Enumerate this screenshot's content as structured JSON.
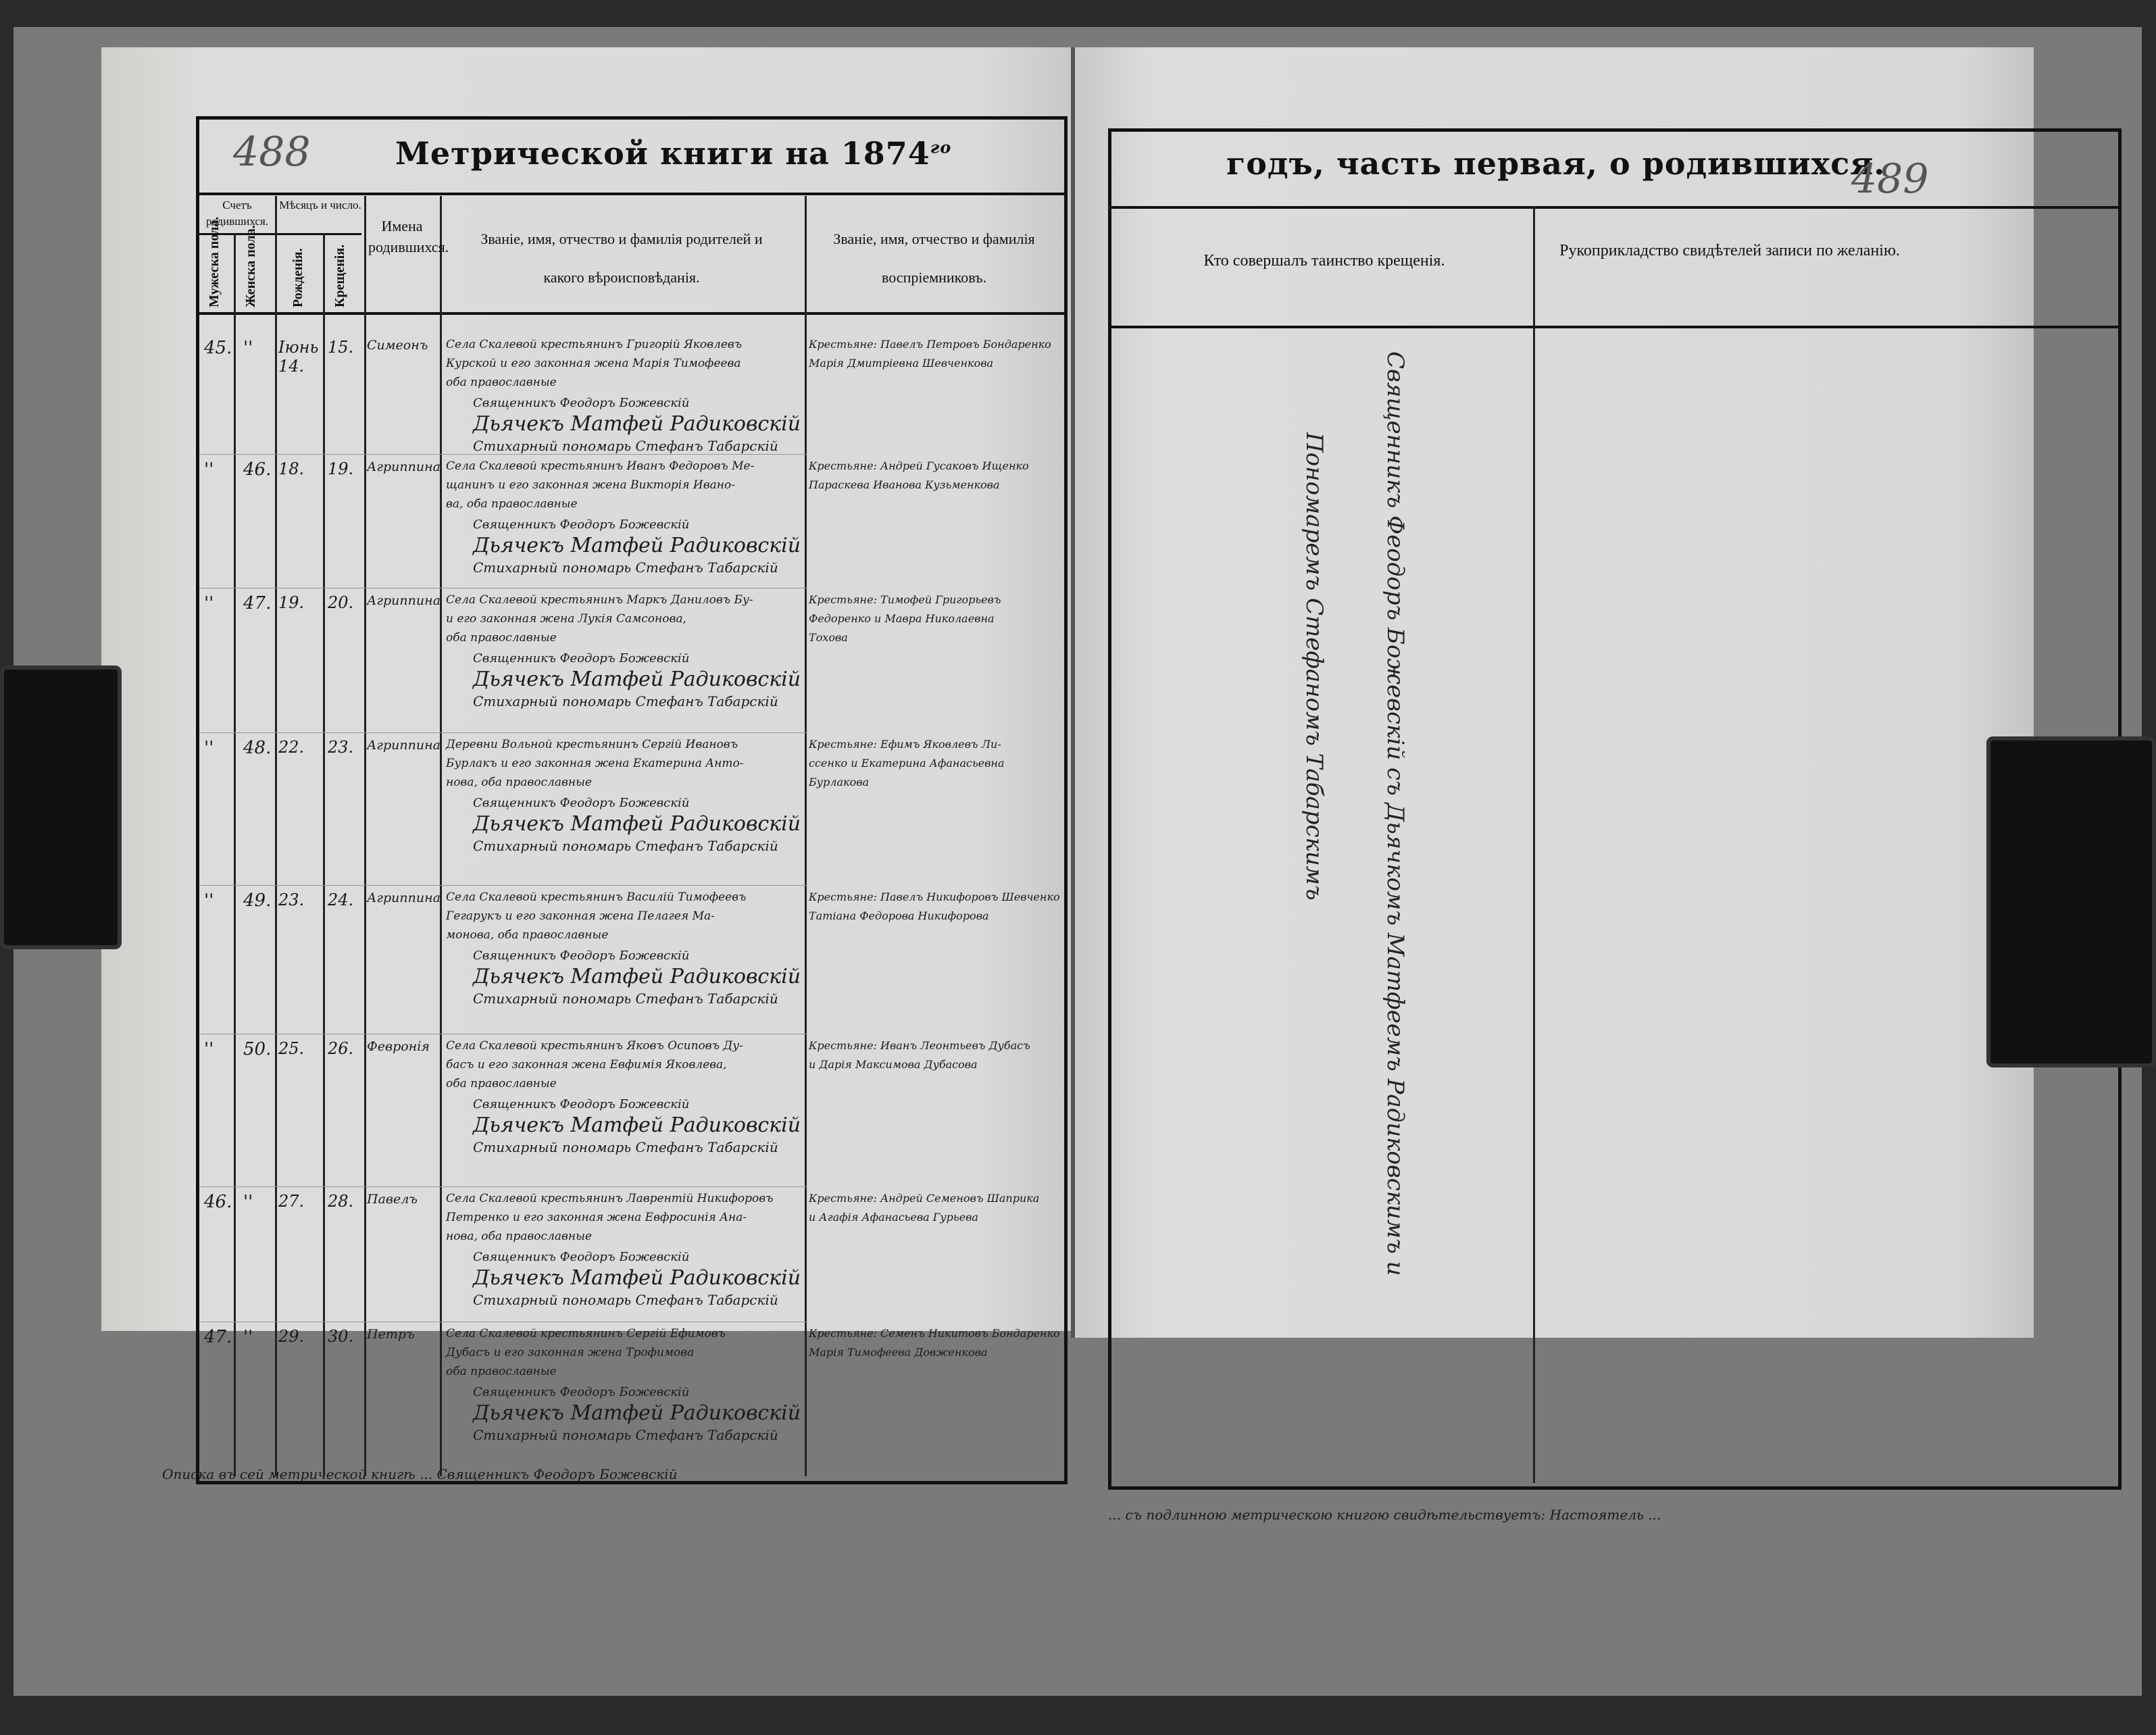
{
  "left_page": {
    "page_number": "488",
    "title": "Метрической книги на 1874",
    "year_suffix": "го",
    "columns": {
      "count_group": "Счетъ родившихся.",
      "male": "Мужеска пола.",
      "female": "Женска пола.",
      "date_group": "Мѣсяцъ и число.",
      "birth": "Рожденія.",
      "baptism": "Крещенія.",
      "names": "Имена родившихся.",
      "parents": "Званіе, имя, отчество и фамилія родителей и какого вѣроисповѣданія.",
      "godparents": "Званіе, имя, отчество и фамилія воспріемниковъ."
    },
    "entries": [
      {
        "male": "45.",
        "female": "''",
        "birth": "Iюнь 14.",
        "baptism": "15.",
        "name": "Симеонъ",
        "parents": [
          "Села Скалевой крестьянинъ Григорій Яковлевъ",
          "Курской и его законная жена Марія Тимофеева",
          "оба православные"
        ],
        "godparents": [
          "Крестьяне: Павелъ Петровъ Бондаренко",
          "Марія Дмитріевна Шевченкова"
        ],
        "clergy": [
          "Священникъ Феодоръ Божевскій",
          "Дьячекъ Матфей Радиковскій",
          "Стихарный пономарь Стефанъ Табарскій"
        ]
      },
      {
        "male": "''",
        "female": "46.",
        "birth": "18.",
        "baptism": "19.",
        "name": "Агриппина",
        "parents": [
          "Села Скалевой крестьянинъ Иванъ Федоровъ Ме-",
          "щанинъ и его законная жена Викторія Ивано-",
          "ва, оба православные"
        ],
        "godparents": [
          "Крестьяне: Андрей Гусаковъ Ищенко",
          "Параскева Иванова Кузьменкова"
        ],
        "clergy": [
          "Священникъ Феодоръ Божевскій",
          "Дьячекъ Матфей Радиковскій",
          "Стихарный пономарь Стефанъ Табарскій"
        ]
      },
      {
        "male": "''",
        "female": "47.",
        "birth": "19.",
        "baptism": "20.",
        "name": "Агриппина",
        "parents": [
          "Села Скалевой крестьянинъ Маркъ Даниловъ Бу-",
          "и его законная жена Лукія Самсонова,",
          "оба православные"
        ],
        "godparents": [
          "Крестьяне: Тимофей Григорьевъ",
          "Федоренко и Мавра Николаевна",
          "Тохова"
        ],
        "clergy": [
          "Священникъ Феодоръ Божевскій",
          "Дьячекъ Матфей Радиковскій",
          "Стихарный пономарь Стефанъ Табарскій"
        ]
      },
      {
        "male": "''",
        "female": "48.",
        "birth": "22.",
        "baptism": "23.",
        "name": "Агриппина",
        "parents": [
          "Деревни Вольной крестьянинъ Сергій Ивановъ",
          "Бурлакъ и его законная жена Екатерина Анто-",
          "нова, оба православные"
        ],
        "godparents": [
          "Крестьяне: Ефимъ Яковлевъ Ли-",
          "ссенко и Екатерина Афанасьевна",
          "Бурлакова"
        ],
        "clergy": [
          "Священникъ Феодоръ Божевскій",
          "Дьячекъ Матфей Радиковскій",
          "Стихарный пономарь Стефанъ Табарскій"
        ]
      },
      {
        "male": "''",
        "female": "49.",
        "birth": "23.",
        "baptism": "24.",
        "name": "Агриппина",
        "parents": [
          "Села Скалевой крестьянинъ Василій Тимофеевъ",
          "Гегарукъ и его законная жена Пелагея Ма-",
          "монова, оба православные"
        ],
        "godparents": [
          "Крестьяне: Павелъ Никифоровъ Шевченко",
          "Татіана Федорова Никифорова"
        ],
        "clergy": [
          "Священникъ Феодоръ Божевскій",
          "Дьячекъ Матфей Радиковскій",
          "Стихарный пономарь Стефанъ Табарскій"
        ]
      },
      {
        "male": "''",
        "female": "50.",
        "birth": "25.",
        "baptism": "26.",
        "name": "Февронія",
        "parents": [
          "Села Скалевой крестьянинъ Яковъ Осиповъ Ду-",
          "басъ и его законная жена Евфимія Яковлева,",
          "оба православные"
        ],
        "godparents": [
          "Крестьяне: Иванъ Леонтьевъ Дубасъ",
          "и Дарія Максимова Дубасова"
        ],
        "clergy": [
          "Священникъ Феодоръ Божевскій",
          "Дьячекъ Матфей Радиковскій",
          "Стихарный пономарь Стефанъ Табарскій"
        ]
      },
      {
        "male": "46.",
        "female": "''",
        "birth": "27.",
        "baptism": "28.",
        "name": "Павелъ",
        "parents": [
          "Села Скалевой крестьянинъ Лаврентій Никифоровъ",
          "Петренко и его законная жена Евфросинія Ана-",
          "нова, оба православные"
        ],
        "godparents": [
          "Крестьяне: Андрей Семеновъ Шаприка",
          "и Агафія Афанасьева Гурьева"
        ],
        "clergy": [
          "Священникъ Феодоръ Божевскій",
          "Дьячекъ Матфей Радиковскій",
          "Стихарный пономарь Стефанъ Табарскій"
        ]
      },
      {
        "male": "47.",
        "female": "''",
        "birth": "29.",
        "baptism": "30.",
        "name": "Петръ",
        "parents": [
          "Села Скалевой крестьянинъ Сергій Ефимовъ",
          "Дубасъ и его законная жена Трофимова",
          "оба православные"
        ],
        "godparents": [
          "Крестьяне: Семенъ Никитовъ Бондаренко",
          "Марія Тимофеева Довженкова"
        ],
        "clergy": [
          "Священникъ Феодоръ Божевскій",
          "Дьячекъ Матфей Радиковскій",
          "Стихарный пономарь Стефанъ Табарскій"
        ]
      }
    ],
    "footnote": [
      "Описка въ сей метрической книгѣ ... Священникъ Феодоръ Божевскій"
    ]
  },
  "right_page": {
    "page_number": "489",
    "title": "годъ, часть первая, о родившихся.",
    "columns": {
      "performer": "Кто совершалъ таинство крещенія.",
      "witnesses": "Рукоприкладство свидѣтелей записи по желанію."
    },
    "performer_text": [
      "Священникъ Феодоръ Божевскій съ Дьячкомъ Матфеемъ Радиковскимъ и",
      "Пономаремъ Стефаномъ Табарскимъ"
    ],
    "footnote": "... съ подлинною метрическою книгою свидѣтельствуетъ: Настоятель ..."
  }
}
